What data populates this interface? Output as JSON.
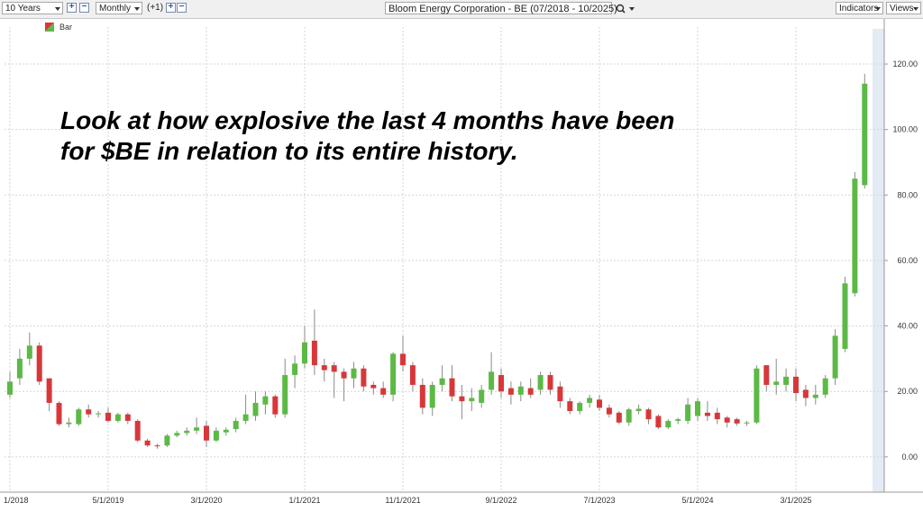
{
  "toolbar": {
    "range": "10 Years",
    "interval": "Monthly",
    "offset": "(+1)",
    "symbol": "Bloom Energy Corporation - BE (07/2018 - 10/2025)",
    "indicators": "Indicators",
    "views": "Views"
  },
  "chart_data": {
    "type": "candlestick",
    "legend": "Bar",
    "annotation": [
      "Look at how explosive the last 4 months have been",
      "for $BE in relation to its entire history."
    ],
    "categories": [
      "1/2018",
      null,
      null,
      null,
      null,
      null,
      null,
      null,
      null,
      null,
      "5/1/2019",
      null,
      null,
      null,
      null,
      null,
      null,
      null,
      null,
      null,
      "3/1/2020",
      null,
      null,
      null,
      null,
      null,
      null,
      null,
      null,
      null,
      "1/1/2021",
      null,
      null,
      null,
      null,
      null,
      null,
      null,
      null,
      null,
      "11/1/2021",
      null,
      null,
      null,
      null,
      null,
      null,
      null,
      null,
      null,
      "9/1/2022",
      null,
      null,
      null,
      null,
      null,
      null,
      null,
      null,
      null,
      "7/1/2023",
      null,
      null,
      null,
      null,
      null,
      null,
      null,
      null,
      null,
      "5/1/2024",
      null,
      null,
      null,
      null,
      null,
      null,
      null,
      null,
      null,
      "3/1/2025",
      null,
      null,
      null,
      null,
      null,
      null,
      null
    ],
    "open": [
      19,
      24,
      30,
      34,
      24,
      16.5,
      10,
      10,
      14.5,
      13,
      13.5,
      11,
      13,
      11,
      5,
      3.5,
      3.5,
      6.5,
      7.3,
      8,
      9.5,
      5,
      7.5,
      8.5,
      11,
      12.5,
      16,
      18.5,
      13,
      25,
      28.5,
      35.5,
      28,
      28,
      26,
      24,
      27,
      22,
      21,
      19,
      31.5,
      28,
      22,
      15,
      22,
      24,
      18.5,
      17,
      16.5,
      20.5,
      25,
      21,
      19,
      21,
      20.5,
      25,
      21.5,
      17,
      14,
      16.5,
      17.5,
      15,
      13.5,
      10.5,
      14,
      14.5,
      12.5,
      9,
      11,
      11,
      12.5,
      13.5,
      13.5,
      12,
      11.5,
      10.3,
      10.5,
      28,
      22,
      22,
      24.5,
      20.5,
      18,
      19,
      24,
      33,
      50,
      83
    ],
    "high": [
      26,
      33,
      38,
      35,
      24,
      17,
      12,
      15,
      16,
      14,
      15,
      13.5,
      13.5,
      11.5,
      5.5,
      4,
      7,
      8,
      9,
      12,
      11,
      9,
      9,
      12,
      19,
      20,
      20,
      19,
      30,
      31,
      40,
      45,
      30,
      29,
      27,
      29,
      28,
      23,
      23,
      32,
      37,
      29,
      24,
      23,
      28,
      28,
      22,
      21,
      22,
      32,
      27,
      23,
      23,
      24,
      26,
      26,
      23,
      18,
      17,
      19,
      19,
      16,
      14,
      15,
      16,
      15,
      13,
      11.5,
      12,
      18,
      18,
      17,
      15,
      12.5,
      12,
      11,
      28,
      28,
      30,
      27,
      27,
      22,
      22,
      25,
      39,
      55,
      87,
      117
    ],
    "low": [
      18,
      22,
      28,
      22,
      14,
      9.5,
      9,
      9.5,
      12,
      12,
      10.5,
      10.5,
      10,
      4.5,
      3,
      2.5,
      3,
      6,
      6.5,
      7,
      3,
      4.5,
      6.5,
      7.5,
      10,
      11,
      13,
      12,
      12,
      21,
      27,
      25,
      23,
      18,
      17,
      21,
      20,
      19,
      18,
      17,
      26,
      20,
      13,
      12.5,
      20,
      17,
      11.5,
      14,
      15,
      19,
      18,
      16,
      17,
      18,
      19,
      19,
      15,
      13,
      13,
      15,
      14,
      12,
      10,
      9.5,
      13,
      10,
      8.5,
      8.5,
      10,
      10,
      11,
      11,
      10,
      9,
      9.5,
      9.5,
      10,
      20,
      19,
      20,
      17,
      15.5,
      16,
      18,
      22,
      32,
      49,
      82
    ],
    "close": [
      23,
      30,
      34,
      23,
      16.5,
      10,
      10.5,
      14.5,
      13,
      13.3,
      11,
      13,
      11,
      5,
      3.5,
      3.3,
      6.5,
      7.3,
      8,
      9,
      5,
      8,
      8.3,
      11,
      13,
      16.5,
      18.5,
      13,
      25,
      28.5,
      35,
      28,
      26.5,
      26,
      24,
      27,
      21.5,
      21,
      19,
      31.5,
      28,
      22,
      15,
      22,
      24,
      18.5,
      17,
      18,
      20.5,
      26,
      20,
      19,
      21.5,
      19,
      25,
      20.5,
      17,
      14,
      16.5,
      18,
      15,
      13,
      10.5,
      14.5,
      14.7,
      11.5,
      9,
      11,
      11.5,
      16,
      17,
      12.5,
      11.5,
      10.5,
      10.2,
      10.5,
      27,
      22,
      23,
      24.5,
      19.5,
      18,
      19,
      24,
      37,
      53,
      85,
      114
    ],
    "up_color": "#5cb946",
    "down_color": "#d8373a",
    "ylim": [
      -10.5,
      131.3
    ],
    "yticks": [
      {
        "value": 0,
        "label": "0.00"
      },
      {
        "value": 20,
        "label": "20.00"
      },
      {
        "value": 40,
        "label": "40.00"
      },
      {
        "value": 60,
        "label": "60.00"
      },
      {
        "value": 80,
        "label": "80.00"
      },
      {
        "value": 100,
        "label": "100.00"
      },
      {
        "value": 120,
        "label": "120.00"
      }
    ],
    "grid": true
  }
}
